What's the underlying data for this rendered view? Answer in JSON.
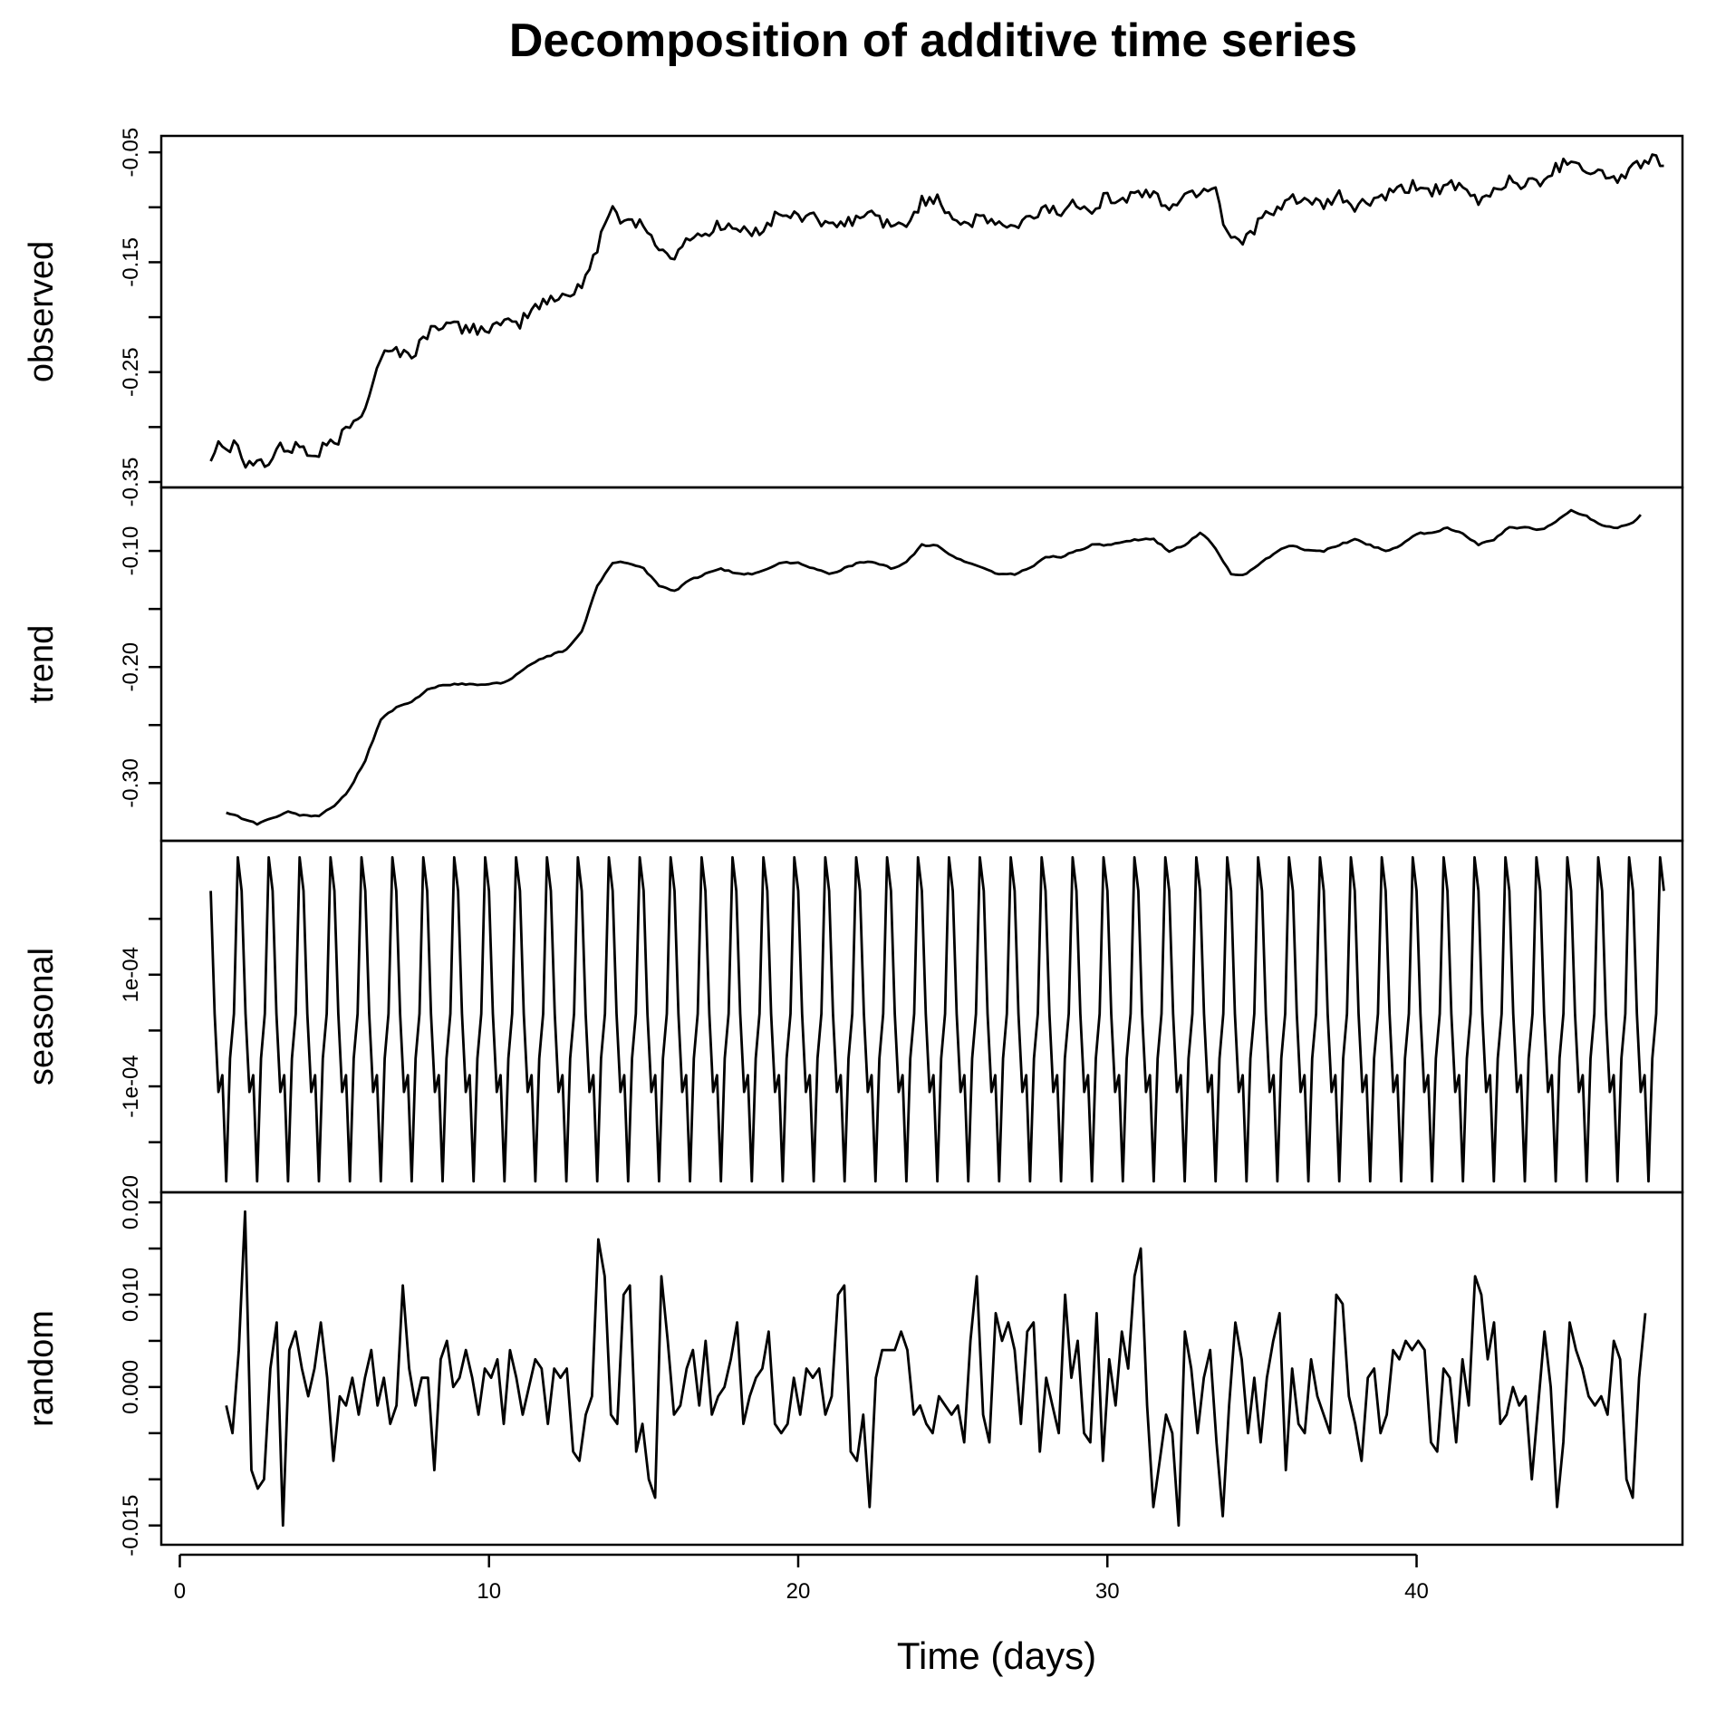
{
  "chart_data": {
    "type": "line",
    "title": "Decomposition of additive time series",
    "xlabel": "Time (days)",
    "xlim": [
      0,
      48
    ],
    "xticks": [
      0,
      10,
      20,
      30,
      40
    ],
    "frequency_per_day": 8,
    "start_day": 1,
    "end_day": 48,
    "panels": [
      {
        "name": "observed",
        "ylabel": "observed",
        "ylim": [
          -0.35,
          -0.04
        ],
        "yticks": [
          "-0.35",
          "-0.25",
          "-0.15",
          "-0.05"
        ],
        "ytick_values": [
          -0.35,
          -0.25,
          -0.15,
          -0.05
        ],
        "keypoints": [
          [
            1.0,
            -0.33
          ],
          [
            1.2,
            -0.31
          ],
          [
            1.6,
            -0.32
          ],
          [
            1.9,
            -0.31
          ],
          [
            2.1,
            -0.335
          ],
          [
            2.5,
            -0.33
          ],
          [
            2.9,
            -0.335
          ],
          [
            3.1,
            -0.32
          ],
          [
            3.6,
            -0.32
          ],
          [
            3.9,
            -0.315
          ],
          [
            4.3,
            -0.33
          ],
          [
            4.6,
            -0.32
          ],
          [
            5.0,
            -0.315
          ],
          [
            5.5,
            -0.3
          ],
          [
            6.0,
            -0.28
          ],
          [
            6.5,
            -0.235
          ],
          [
            7.0,
            -0.23
          ],
          [
            7.5,
            -0.235
          ],
          [
            8.0,
            -0.215
          ],
          [
            8.5,
            -0.205
          ],
          [
            9.0,
            -0.21
          ],
          [
            10.0,
            -0.21
          ],
          [
            11.0,
            -0.205
          ],
          [
            11.5,
            -0.19
          ],
          [
            12.0,
            -0.185
          ],
          [
            12.5,
            -0.18
          ],
          [
            13.0,
            -0.17
          ],
          [
            13.5,
            -0.14
          ],
          [
            13.9,
            -0.1
          ],
          [
            14.3,
            -0.11
          ],
          [
            15.0,
            -0.115
          ],
          [
            15.5,
            -0.14
          ],
          [
            16.1,
            -0.145
          ],
          [
            16.5,
            -0.125
          ],
          [
            17.0,
            -0.125
          ],
          [
            17.5,
            -0.115
          ],
          [
            18.0,
            -0.12
          ],
          [
            18.5,
            -0.125
          ],
          [
            19.0,
            -0.115
          ],
          [
            19.5,
            -0.105
          ],
          [
            20.0,
            -0.11
          ],
          [
            20.5,
            -0.105
          ],
          [
            21.0,
            -0.12
          ],
          [
            21.5,
            -0.115
          ],
          [
            22.0,
            -0.11
          ],
          [
            22.5,
            -0.105
          ],
          [
            23.0,
            -0.12
          ],
          [
            23.5,
            -0.115
          ],
          [
            24.0,
            -0.095
          ],
          [
            24.5,
            -0.09
          ],
          [
            25.0,
            -0.11
          ],
          [
            25.5,
            -0.115
          ],
          [
            26.0,
            -0.11
          ],
          [
            26.5,
            -0.115
          ],
          [
            27.0,
            -0.12
          ],
          [
            27.5,
            -0.11
          ],
          [
            28.0,
            -0.1
          ],
          [
            28.5,
            -0.105
          ],
          [
            29.0,
            -0.095
          ],
          [
            29.5,
            -0.1
          ],
          [
            30.0,
            -0.09
          ],
          [
            30.5,
            -0.095
          ],
          [
            31.0,
            -0.085
          ],
          [
            31.5,
            -0.09
          ],
          [
            32.0,
            -0.1
          ],
          [
            32.5,
            -0.09
          ],
          [
            33.0,
            -0.085
          ],
          [
            33.5,
            -0.08
          ],
          [
            33.8,
            -0.12
          ],
          [
            34.2,
            -0.13
          ],
          [
            34.6,
            -0.125
          ],
          [
            35.0,
            -0.11
          ],
          [
            35.5,
            -0.105
          ],
          [
            36.0,
            -0.09
          ],
          [
            36.5,
            -0.095
          ],
          [
            37.0,
            -0.1
          ],
          [
            37.5,
            -0.09
          ],
          [
            38.0,
            -0.1
          ],
          [
            38.5,
            -0.095
          ],
          [
            39.0,
            -0.09
          ],
          [
            39.5,
            -0.085
          ],
          [
            40.0,
            -0.08
          ],
          [
            40.5,
            -0.085
          ],
          [
            41.0,
            -0.08
          ],
          [
            41.5,
            -0.085
          ],
          [
            42.0,
            -0.095
          ],
          [
            42.5,
            -0.085
          ],
          [
            43.0,
            -0.075
          ],
          [
            43.5,
            -0.08
          ],
          [
            44.0,
            -0.075
          ],
          [
            44.5,
            -0.065
          ],
          [
            45.0,
            -0.055
          ],
          [
            45.5,
            -0.065
          ],
          [
            46.0,
            -0.07
          ],
          [
            46.5,
            -0.075
          ],
          [
            47.0,
            -0.065
          ],
          [
            47.5,
            -0.055
          ],
          [
            48.0,
            -0.06
          ]
        ]
      },
      {
        "name": "trend",
        "ylabel": "trend",
        "ylim": [
          -0.345,
          -0.05
        ],
        "yticks": [
          "-0.30",
          "-0.20",
          "-0.10"
        ],
        "ytick_values": [
          -0.3,
          -0.2,
          -0.1
        ],
        "keypoints": [
          [
            1.5,
            -0.325
          ],
          [
            2.0,
            -0.33
          ],
          [
            2.5,
            -0.335
          ],
          [
            3.0,
            -0.33
          ],
          [
            3.5,
            -0.325
          ],
          [
            4.0,
            -0.328
          ],
          [
            4.5,
            -0.328
          ],
          [
            5.0,
            -0.32
          ],
          [
            5.5,
            -0.305
          ],
          [
            6.0,
            -0.28
          ],
          [
            6.5,
            -0.245
          ],
          [
            7.0,
            -0.235
          ],
          [
            7.5,
            -0.23
          ],
          [
            8.0,
            -0.22
          ],
          [
            8.5,
            -0.215
          ],
          [
            9.0,
            -0.215
          ],
          [
            10.0,
            -0.215
          ],
          [
            10.5,
            -0.213
          ],
          [
            11.0,
            -0.205
          ],
          [
            11.5,
            -0.195
          ],
          [
            12.0,
            -0.19
          ],
          [
            12.5,
            -0.185
          ],
          [
            13.0,
            -0.17
          ],
          [
            13.5,
            -0.13
          ],
          [
            14.0,
            -0.11
          ],
          [
            14.5,
            -0.11
          ],
          [
            15.0,
            -0.115
          ],
          [
            15.5,
            -0.13
          ],
          [
            16.0,
            -0.135
          ],
          [
            16.5,
            -0.125
          ],
          [
            17.0,
            -0.12
          ],
          [
            17.5,
            -0.115
          ],
          [
            18.0,
            -0.12
          ],
          [
            18.5,
            -0.12
          ],
          [
            19.0,
            -0.115
          ],
          [
            19.5,
            -0.11
          ],
          [
            20.0,
            -0.11
          ],
          [
            20.5,
            -0.115
          ],
          [
            21.0,
            -0.12
          ],
          [
            21.5,
            -0.115
          ],
          [
            22.0,
            -0.11
          ],
          [
            22.5,
            -0.11
          ],
          [
            23.0,
            -0.115
          ],
          [
            23.5,
            -0.11
          ],
          [
            24.0,
            -0.095
          ],
          [
            24.5,
            -0.095
          ],
          [
            25.0,
            -0.105
          ],
          [
            25.5,
            -0.11
          ],
          [
            26.0,
            -0.115
          ],
          [
            26.5,
            -0.12
          ],
          [
            27.0,
            -0.12
          ],
          [
            27.5,
            -0.115
          ],
          [
            28.0,
            -0.105
          ],
          [
            28.5,
            -0.105
          ],
          [
            29.0,
            -0.1
          ],
          [
            29.5,
            -0.095
          ],
          [
            30.0,
            -0.095
          ],
          [
            30.5,
            -0.093
          ],
          [
            31.0,
            -0.09
          ],
          [
            31.5,
            -0.09
          ],
          [
            32.0,
            -0.1
          ],
          [
            32.5,
            -0.095
          ],
          [
            33.0,
            -0.085
          ],
          [
            33.3,
            -0.09
          ],
          [
            34.0,
            -0.12
          ],
          [
            34.5,
            -0.12
          ],
          [
            35.0,
            -0.11
          ],
          [
            35.5,
            -0.1
          ],
          [
            36.0,
            -0.095
          ],
          [
            36.5,
            -0.1
          ],
          [
            37.0,
            -0.1
          ],
          [
            37.5,
            -0.095
          ],
          [
            38.0,
            -0.09
          ],
          [
            38.5,
            -0.095
          ],
          [
            39.0,
            -0.1
          ],
          [
            39.5,
            -0.095
          ],
          [
            40.0,
            -0.085
          ],
          [
            40.5,
            -0.085
          ],
          [
            41.0,
            -0.08
          ],
          [
            41.5,
            -0.085
          ],
          [
            42.0,
            -0.095
          ],
          [
            42.5,
            -0.09
          ],
          [
            43.0,
            -0.08
          ],
          [
            43.5,
            -0.08
          ],
          [
            44.0,
            -0.082
          ],
          [
            44.5,
            -0.075
          ],
          [
            45.0,
            -0.065
          ],
          [
            45.5,
            -0.07
          ],
          [
            46.0,
            -0.078
          ],
          [
            46.5,
            -0.08
          ],
          [
            47.0,
            -0.075
          ],
          [
            47.3,
            -0.068
          ]
        ]
      },
      {
        "name": "seasonal",
        "ylabel": "seasonal",
        "ylim": [
          -0.00028,
          0.00033
        ],
        "yticks": [
          "-1e-04",
          "1e-04"
        ],
        "ytick_values": [
          -0.0001,
          0.0001
        ],
        "minor_ytick_values": [
          -0.0002,
          0.0,
          0.0002
        ],
        "cycle": [
          0.00025,
          3e-05,
          -0.00011,
          -8e-05,
          -0.00027,
          -5e-05,
          3e-05,
          0.00031
        ]
      },
      {
        "name": "random",
        "ylabel": "random",
        "ylim": [
          -0.0165,
          0.0205
        ],
        "yticks": [
          "-0.015",
          "0.000",
          "0.010",
          "0.020"
        ],
        "ytick_values": [
          -0.015,
          0.0,
          0.01,
          0.02
        ],
        "minor_ytick_values": [
          -0.01,
          -0.005,
          0.005,
          0.015
        ],
        "start_day": 1.5,
        "end_day": 47.4,
        "values": [
          -0.002,
          -0.005,
          0.004,
          0.019,
          -0.009,
          -0.011,
          -0.01,
          0.002,
          0.007,
          -0.015,
          0.004,
          0.006,
          0.002,
          -0.001,
          0.002,
          0.007,
          0.001,
          -0.008,
          -0.001,
          -0.002,
          0.001,
          -0.003,
          0.001,
          0.004,
          -0.002,
          0.001,
          -0.004,
          -0.002,
          0.011,
          0.002,
          -0.002,
          0.001,
          0.001,
          -0.009,
          0.003,
          0.005,
          0.0,
          0.001,
          0.004,
          0.001,
          -0.003,
          0.002,
          0.001,
          0.003,
          -0.004,
          0.004,
          0.001,
          -0.003,
          0.0,
          0.003,
          0.002,
          -0.004,
          0.002,
          0.001,
          0.002,
          -0.007,
          -0.008,
          -0.003,
          -0.001,
          0.016,
          0.012,
          -0.003,
          -0.004,
          0.01,
          0.011,
          -0.007,
          -0.004,
          -0.01,
          -0.012,
          0.012,
          0.005,
          -0.003,
          -0.002,
          0.002,
          0.004,
          -0.002,
          0.005,
          -0.003,
          -0.001,
          0.0,
          0.003,
          0.007,
          -0.004,
          -0.001,
          0.001,
          0.002,
          0.006,
          -0.004,
          -0.005,
          -0.004,
          0.001,
          -0.003,
          0.002,
          0.001,
          0.002,
          -0.003,
          -0.001,
          0.01,
          0.011,
          -0.007,
          -0.008,
          -0.003,
          -0.013,
          0.001,
          0.004,
          0.004,
          0.004,
          0.006,
          0.004,
          -0.003,
          -0.002,
          -0.004,
          -0.005,
          -0.001,
          -0.002,
          -0.003,
          -0.002,
          -0.006,
          0.005,
          0.012,
          -0.003,
          -0.006,
          0.008,
          0.005,
          0.007,
          0.004,
          -0.004,
          0.006,
          0.007,
          -0.007,
          0.001,
          -0.002,
          -0.005,
          0.01,
          0.001,
          0.005,
          -0.005,
          -0.006,
          0.008,
          -0.008,
          0.003,
          -0.002,
          0.006,
          0.002,
          0.012,
          0.015,
          -0.002,
          -0.013,
          -0.008,
          -0.003,
          -0.005,
          -0.015,
          0.006,
          0.002,
          -0.005,
          0.001,
          0.004,
          -0.006,
          -0.014,
          -0.002,
          0.007,
          0.003,
          -0.005,
          0.001,
          -0.006,
          0.001,
          0.005,
          0.008,
          -0.009,
          0.002,
          -0.004,
          -0.005,
          0.003,
          -0.001,
          -0.003,
          -0.005,
          0.01,
          0.009,
          -0.001,
          -0.004,
          -0.008,
          0.001,
          0.002,
          -0.005,
          -0.003,
          0.004,
          0.003,
          0.005,
          0.004,
          0.005,
          0.004,
          -0.006,
          -0.007,
          0.002,
          0.001,
          -0.006,
          0.003,
          -0.002,
          0.012,
          0.01,
          0.003,
          0.007,
          -0.004,
          -0.003,
          0.0,
          -0.002,
          -0.001,
          -0.01,
          -0.002,
          0.006,
          0.0,
          -0.013,
          -0.006,
          0.007,
          0.004,
          0.002,
          -0.001,
          -0.002,
          -0.001,
          -0.003,
          0.005,
          0.003,
          -0.01,
          -0.012,
          0.001,
          0.008
        ]
      }
    ]
  }
}
